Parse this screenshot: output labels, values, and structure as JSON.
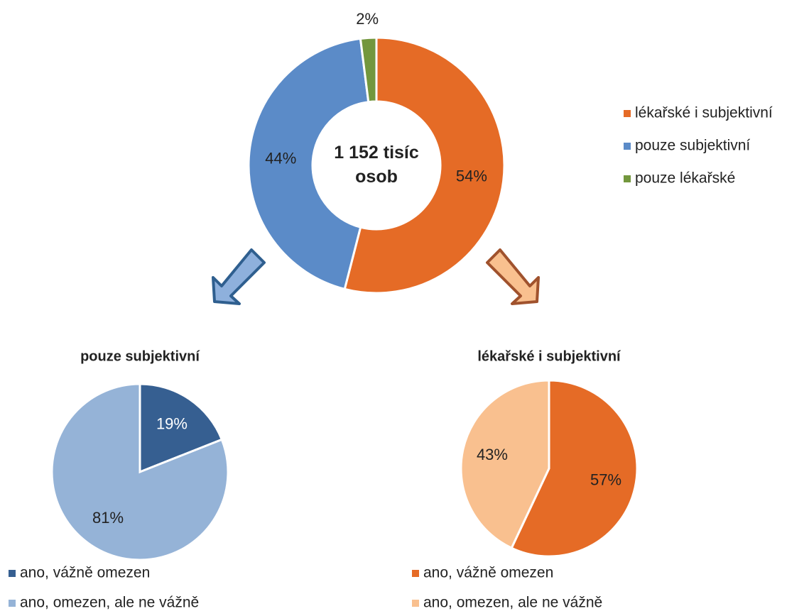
{
  "chart_data": [
    {
      "type": "donut",
      "center_text": "1 152 tisíc osob",
      "categories": [
        "lékařské i subjektivní",
        "pouze subjektivní",
        "pouze lékařské"
      ],
      "values": [
        54,
        44,
        2
      ],
      "value_labels": [
        "54%",
        "44%",
        "2%"
      ],
      "colors": [
        "#e56b26",
        "#5b8bc8",
        "#73973d"
      ],
      "legend": "right"
    },
    {
      "type": "pie",
      "title": "pouze subjektivní",
      "categories": [
        "ano, vážně omezen",
        "ano, omezen, ale ne vážně"
      ],
      "values": [
        19,
        81
      ],
      "value_labels": [
        "19%",
        "81%"
      ],
      "colors": [
        "#365f91",
        "#95b3d7"
      ],
      "label_colors": [
        "#ffffff",
        "#222222"
      ],
      "legend": "bottom"
    },
    {
      "type": "pie",
      "title": "lékařské i subjektivní",
      "categories": [
        "ano, vážně omezen",
        "ano, omezen, ale ne vážně"
      ],
      "values": [
        57,
        43
      ],
      "value_labels": [
        "57%",
        "43%"
      ],
      "colors": [
        "#e56b26",
        "#f9c08f"
      ],
      "legend": "bottom"
    }
  ]
}
